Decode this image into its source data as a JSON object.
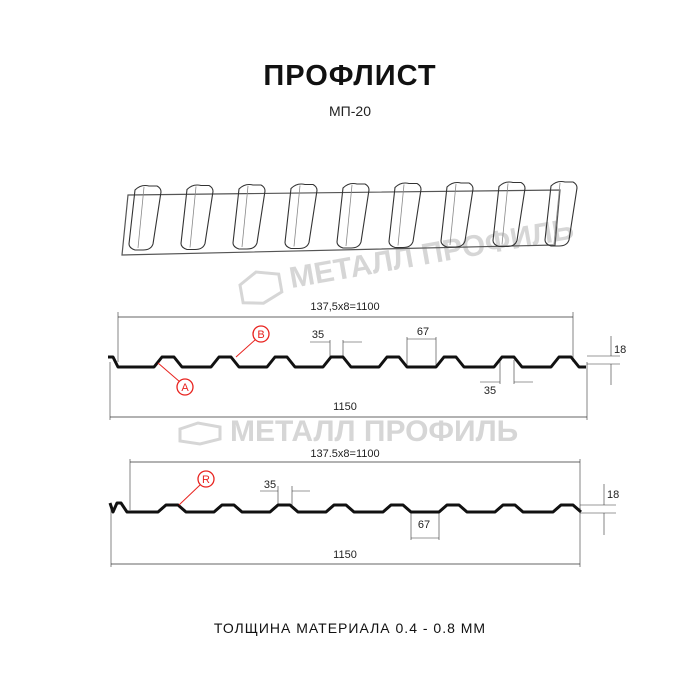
{
  "header": {
    "title": "ПРОФЛИСТ",
    "subtitle": "МП-20"
  },
  "watermark": "МЕТАЛЛ ПРОФИЛЬ",
  "profile_top": {
    "pitch_label": "137,5x8=1100",
    "crest_width": "35",
    "crest_width_2": "35",
    "valley_width": "67",
    "height": "18",
    "total_width": "1150",
    "marker_a": "A",
    "marker_b": "B"
  },
  "profile_bottom": {
    "pitch_label": "137.5x8=1100",
    "crest_width": "35",
    "valley_width": "67",
    "height": "18",
    "total_width": "1150",
    "marker_r": "R"
  },
  "footer": "ТОЛЩИНА МАТЕРИАЛА 0.4 - 0.8 ММ",
  "colors": {
    "marker": "#e8231f",
    "line": "#111111",
    "watermark": "#d6d6d6"
  }
}
